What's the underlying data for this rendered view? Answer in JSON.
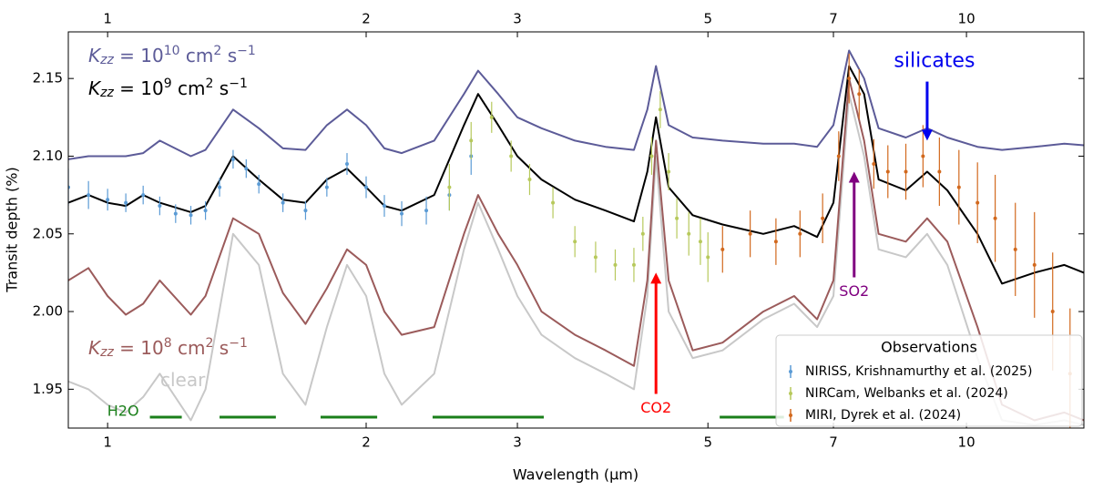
{
  "chart_data": {
    "type": "line",
    "xlabel": "Wavelength (μm)",
    "ylabel": "Transit depth (%)",
    "xscale": "log",
    "xlim": [
      0.9,
      13.7
    ],
    "ylim": [
      1.925,
      2.18
    ],
    "xticks": [
      1,
      2,
      3,
      5,
      7,
      10
    ],
    "yticks": [
      1.95,
      {
        "value": 2,
        "label": "2.00"
      },
      2.05,
      {
        "value": 2.1,
        "label": "2.10"
      },
      2.15
    ],
    "x": [
      0.9,
      0.95,
      1.0,
      1.05,
      1.1,
      1.15,
      1.25,
      1.3,
      1.4,
      1.5,
      1.6,
      1.7,
      1.8,
      1.9,
      2.0,
      2.1,
      2.2,
      2.4,
      2.6,
      2.7,
      2.85,
      3.0,
      3.2,
      3.5,
      3.8,
      4.1,
      4.25,
      4.35,
      4.5,
      4.8,
      5.2,
      5.8,
      6.3,
      6.7,
      7.0,
      7.3,
      7.6,
      7.9,
      8.5,
      9.0,
      9.5,
      10.3,
      11,
      12,
      13,
      13.7
    ],
    "series": [
      {
        "label": [
          {
            "text": "clear",
            "pos": "base"
          }
        ],
        "color": "#c8c8c8",
        "values": [
          1.955,
          1.95,
          1.94,
          1.935,
          1.945,
          1.96,
          1.93,
          1.95,
          2.05,
          2.03,
          1.96,
          1.94,
          1.99,
          2.03,
          2.01,
          1.96,
          1.94,
          1.96,
          2.04,
          2.07,
          2.04,
          2.01,
          1.985,
          1.97,
          1.96,
          1.95,
          2.01,
          2.1,
          2.0,
          1.97,
          1.975,
          1.995,
          2.005,
          1.99,
          2.01,
          2.14,
          2.1,
          2.04,
          2.035,
          2.05,
          2.03,
          1.97,
          1.93,
          1.927,
          1.93,
          1.927
        ]
      },
      {
        "label": [
          {
            "text": "K",
            "pos": "base",
            "italic": true
          },
          {
            "text": "zz",
            "pos": "sub",
            "italic": true
          },
          {
            "text": " = 10",
            "pos": "base"
          },
          {
            "text": "8",
            "pos": "sup"
          },
          {
            "text": " cm",
            "pos": "base"
          },
          {
            "text": "2",
            "pos": "sup"
          },
          {
            "text": " s",
            "pos": "base"
          },
          {
            "text": "−1",
            "pos": "sup"
          }
        ],
        "color": "#9b5b5b",
        "values": [
          2.02,
          2.028,
          2.01,
          1.998,
          2.005,
          2.02,
          1.998,
          2.01,
          2.06,
          2.05,
          2.012,
          1.992,
          2.015,
          2.04,
          2.03,
          2.0,
          1.985,
          1.99,
          2.05,
          2.075,
          2.05,
          2.03,
          2.0,
          1.985,
          1.975,
          1.965,
          2.02,
          2.11,
          2.02,
          1.975,
          1.98,
          2.0,
          2.01,
          1.995,
          2.02,
          2.15,
          2.11,
          2.05,
          2.045,
          2.06,
          2.045,
          1.99,
          1.94,
          1.93,
          1.935,
          1.93
        ]
      },
      {
        "label": [
          {
            "text": "K",
            "pos": "base",
            "italic": true
          },
          {
            "text": "zz",
            "pos": "sub",
            "italic": true
          },
          {
            "text": " = 10",
            "pos": "base"
          },
          {
            "text": "10",
            "pos": "sup"
          },
          {
            "text": " cm",
            "pos": "base"
          },
          {
            "text": "2",
            "pos": "sup"
          },
          {
            "text": " s",
            "pos": "base"
          },
          {
            "text": "−1",
            "pos": "sup"
          }
        ],
        "color": "#5c5b98",
        "values": [
          2.098,
          2.1,
          2.1,
          2.1,
          2.102,
          2.11,
          2.1,
          2.104,
          2.13,
          2.118,
          2.105,
          2.104,
          2.12,
          2.13,
          2.12,
          2.105,
          2.102,
          2.11,
          2.14,
          2.155,
          2.14,
          2.125,
          2.118,
          2.11,
          2.106,
          2.104,
          2.13,
          2.158,
          2.12,
          2.112,
          2.11,
          2.108,
          2.108,
          2.106,
          2.12,
          2.168,
          2.15,
          2.118,
          2.112,
          2.118,
          2.112,
          2.106,
          2.104,
          2.106,
          2.108,
          2.107
        ]
      },
      {
        "label": [
          {
            "text": "K",
            "pos": "base",
            "italic": true
          },
          {
            "text": "zz",
            "pos": "sub",
            "italic": true
          },
          {
            "text": " = 10",
            "pos": "base"
          },
          {
            "text": "9",
            "pos": "sup"
          },
          {
            "text": " cm",
            "pos": "base"
          },
          {
            "text": "2",
            "pos": "sup"
          },
          {
            "text": " s",
            "pos": "base"
          },
          {
            "text": "−1",
            "pos": "sup"
          }
        ],
        "color": "#000000",
        "values": [
          2.07,
          2.075,
          2.07,
          2.068,
          2.075,
          2.07,
          2.064,
          2.068,
          2.1,
          2.085,
          2.072,
          2.07,
          2.085,
          2.092,
          2.08,
          2.068,
          2.065,
          2.075,
          2.12,
          2.14,
          2.12,
          2.1,
          2.085,
          2.072,
          2.065,
          2.058,
          2.09,
          2.125,
          2.08,
          2.062,
          2.056,
          2.05,
          2.055,
          2.048,
          2.07,
          2.158,
          2.14,
          2.085,
          2.078,
          2.09,
          2.078,
          2.05,
          2.018,
          2.025,
          2.03,
          2.025
        ]
      }
    ],
    "legend_title": "Observations",
    "legend": "lower right",
    "observations": [
      {
        "name": "NIRISS, Krishnamurthy et al. (2025)",
        "color": "#5b9bd5",
        "x": [
          0.9,
          0.95,
          1.0,
          1.05,
          1.1,
          1.15,
          1.2,
          1.25,
          1.3,
          1.35,
          1.4,
          1.45,
          1.5,
          1.6,
          1.7,
          1.8,
          1.9,
          2.0,
          2.1,
          2.2,
          2.35,
          2.5,
          2.65
        ],
        "values": [
          2.08,
          2.075,
          2.072,
          2.07,
          2.075,
          2.068,
          2.063,
          2.062,
          2.065,
          2.08,
          2.098,
          2.092,
          2.082,
          2.07,
          2.065,
          2.08,
          2.095,
          2.08,
          2.068,
          2.063,
          2.065,
          2.075,
          2.1
        ],
        "errors": [
          0.012,
          0.009,
          0.007,
          0.006,
          0.006,
          0.006,
          0.006,
          0.006,
          0.006,
          0.006,
          0.006,
          0.006,
          0.006,
          0.006,
          0.006,
          0.006,
          0.007,
          0.007,
          0.007,
          0.008,
          0.009,
          0.01,
          0.012
        ]
      },
      {
        "name": "NIRCam, Welbanks et al. (2024)",
        "color": "#b7c95c",
        "x": [
          2.5,
          2.65,
          2.8,
          2.95,
          3.1,
          3.3,
          3.5,
          3.7,
          3.9,
          4.1,
          4.2,
          4.3,
          4.4,
          4.5,
          4.6,
          4.75,
          4.9,
          5.0
        ],
        "values": [
          2.08,
          2.11,
          2.125,
          2.1,
          2.085,
          2.07,
          2.045,
          2.035,
          2.03,
          2.03,
          2.05,
          2.1,
          2.13,
          2.09,
          2.06,
          2.05,
          2.045,
          2.035
        ],
        "errors": [
          0.015,
          0.012,
          0.01,
          0.01,
          0.01,
          0.01,
          0.01,
          0.01,
          0.01,
          0.011,
          0.011,
          0.012,
          0.012,
          0.012,
          0.013,
          0.014,
          0.015,
          0.016
        ]
      },
      {
        "name": "MIRI, Dyrek et al. (2024)",
        "color": "#d2691e",
        "x": [
          5.2,
          5.6,
          6.0,
          6.4,
          6.8,
          7.1,
          7.3,
          7.5,
          7.8,
          8.1,
          8.5,
          8.9,
          9.3,
          9.8,
          10.3,
          10.8,
          11.4,
          12,
          12.6,
          13.2
        ],
        "values": [
          2.04,
          2.05,
          2.045,
          2.05,
          2.06,
          2.1,
          2.15,
          2.14,
          2.095,
          2.09,
          2.09,
          2.1,
          2.09,
          2.08,
          2.07,
          2.06,
          2.04,
          2.03,
          2.0,
          1.96
        ],
        "errors": [
          0.015,
          0.015,
          0.015,
          0.015,
          0.016,
          0.016,
          0.016,
          0.016,
          0.016,
          0.017,
          0.018,
          0.02,
          0.022,
          0.024,
          0.026,
          0.028,
          0.03,
          0.034,
          0.038,
          0.042
        ]
      }
    ],
    "annotations": [
      {
        "text": "silicates",
        "color": "#0000ee",
        "x": 9.0,
        "arrow": [
          2.148,
          2.11
        ]
      },
      {
        "text": "SO2",
        "color": "#800080",
        "x": 7.4,
        "arrow": [
          2.022,
          2.09
        ]
      },
      {
        "text": "CO2",
        "color": "#ff0000",
        "x": 4.35,
        "arrow": [
          1.947,
          2.025
        ]
      }
    ],
    "h2o": {
      "text": "H2O",
      "color": "#1a7f1a",
      "y": 1.932,
      "bands": [
        [
          1.12,
          1.22
        ],
        [
          1.35,
          1.57
        ],
        [
          1.77,
          2.06
        ],
        [
          2.39,
          3.22
        ],
        [
          5.16,
          6.13
        ]
      ]
    }
  }
}
